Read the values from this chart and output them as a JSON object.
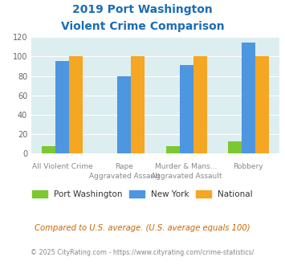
{
  "title_line1": "2019 Port Washington",
  "title_line2": "Violent Crime Comparison",
  "cat_labels_line1": [
    "",
    "Rape",
    "Murder & Mans...",
    ""
  ],
  "cat_labels_line2": [
    "All Violent Crime",
    "Aggravated Assault",
    "Aggravated Assault",
    "Robbery"
  ],
  "port_washington": [
    8,
    0,
    8,
    13
  ],
  "new_york": [
    95,
    80,
    91,
    114
  ],
  "national": [
    100,
    100,
    100,
    100
  ],
  "pw_color": "#7dc832",
  "ny_color": "#4d96e0",
  "nat_color": "#f5a623",
  "ylim": [
    0,
    120
  ],
  "yticks": [
    0,
    20,
    40,
    60,
    80,
    100,
    120
  ],
  "plot_bg": "#dceef0",
  "title_color": "#1a6db5",
  "legend_labels": [
    "Port Washington",
    "New York",
    "National"
  ],
  "footnote1": "Compared to U.S. average. (U.S. average equals 100)",
  "footnote2": "© 2025 CityRating.com - https://www.cityrating.com/crime-statistics/",
  "footnote1_color": "#cc6600",
  "footnote2_color": "#888888"
}
